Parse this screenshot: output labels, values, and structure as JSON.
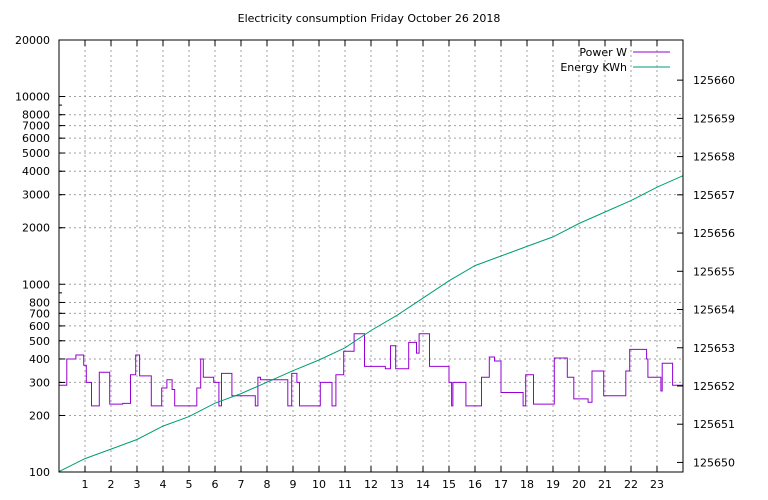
{
  "chart_data": {
    "type": "line",
    "title": "Electricity consumption Friday October 26 2018",
    "xlabel": "",
    "ylabel": "",
    "y2label": "",
    "x_range": [
      0,
      24
    ],
    "x_ticks": [
      1,
      2,
      3,
      4,
      5,
      6,
      7,
      8,
      9,
      10,
      11,
      12,
      13,
      14,
      15,
      16,
      17,
      18,
      19,
      20,
      21,
      22,
      23
    ],
    "y_scale": "log",
    "y_range": [
      100,
      20000
    ],
    "y_ticks": [
      100,
      200,
      300,
      400,
      500,
      600,
      700,
      800,
      1000,
      2000,
      3000,
      4000,
      5000,
      6000,
      7000,
      8000,
      10000,
      20000
    ],
    "y2_range": [
      125649.75,
      125661.05
    ],
    "y2_ticks": [
      125650,
      125651,
      125652,
      125653,
      125654,
      125655,
      125656,
      125657,
      125658,
      125659,
      125660
    ],
    "grid": true,
    "legend_position": "top-right",
    "series": [
      {
        "name": "Power W",
        "axis": "y",
        "color": "#9400d3",
        "step": true,
        "points": [
          [
            0.0,
            290
          ],
          [
            0.3,
            400
          ],
          [
            0.65,
            420
          ],
          [
            0.95,
            370
          ],
          [
            1.05,
            300
          ],
          [
            1.25,
            225
          ],
          [
            1.55,
            340
          ],
          [
            1.95,
            230
          ],
          [
            2.45,
            232
          ],
          [
            2.75,
            330
          ],
          [
            2.95,
            420
          ],
          [
            3.1,
            325
          ],
          [
            3.55,
            225
          ],
          [
            3.95,
            280
          ],
          [
            4.15,
            310
          ],
          [
            4.35,
            275
          ],
          [
            4.45,
            225
          ],
          [
            5.3,
            280
          ],
          [
            5.45,
            400
          ],
          [
            5.55,
            320
          ],
          [
            5.95,
            300
          ],
          [
            6.15,
            225
          ],
          [
            6.25,
            335
          ],
          [
            6.65,
            255
          ],
          [
            7.55,
            225
          ],
          [
            7.65,
            320
          ],
          [
            7.75,
            310
          ],
          [
            8.8,
            225
          ],
          [
            8.95,
            335
          ],
          [
            9.15,
            300
          ],
          [
            9.25,
            225
          ],
          [
            10.05,
            300
          ],
          [
            10.5,
            225
          ],
          [
            10.65,
            330
          ],
          [
            10.95,
            440
          ],
          [
            11.35,
            545
          ],
          [
            11.75,
            365
          ],
          [
            12.55,
            355
          ],
          [
            12.75,
            470
          ],
          [
            12.95,
            355
          ],
          [
            13.45,
            490
          ],
          [
            13.75,
            430
          ],
          [
            13.85,
            545
          ],
          [
            14.25,
            365
          ],
          [
            15.0,
            300
          ],
          [
            15.1,
            225
          ],
          [
            15.15,
            300
          ],
          [
            15.65,
            225
          ],
          [
            16.25,
            320
          ],
          [
            16.55,
            410
          ],
          [
            16.75,
            390
          ],
          [
            17.0,
            265
          ],
          [
            17.85,
            225
          ],
          [
            17.95,
            330
          ],
          [
            18.25,
            230
          ],
          [
            19.05,
            405
          ],
          [
            19.55,
            320
          ],
          [
            19.8,
            245
          ],
          [
            20.35,
            235
          ],
          [
            20.5,
            345
          ],
          [
            20.95,
            255
          ],
          [
            21.8,
            345
          ],
          [
            21.95,
            450
          ],
          [
            22.6,
            400
          ],
          [
            22.65,
            320
          ],
          [
            23.15,
            270
          ],
          [
            23.2,
            380
          ],
          [
            23.6,
            290
          ],
          [
            24.0,
            290
          ]
        ]
      },
      {
        "name": "Energy KWh",
        "axis": "y2",
        "color": "#009e73",
        "step": false,
        "points": [
          [
            0.0,
            125649.76
          ],
          [
            1.0,
            125650.1
          ],
          [
            2.0,
            125650.35
          ],
          [
            3.0,
            125650.6
          ],
          [
            4.0,
            125650.95
          ],
          [
            5.0,
            125651.2
          ],
          [
            6.0,
            125651.55
          ],
          [
            7.0,
            125651.8
          ],
          [
            8.0,
            125652.1
          ],
          [
            9.0,
            125652.4
          ],
          [
            10.0,
            125652.68
          ],
          [
            11.0,
            125653.0
          ],
          [
            12.0,
            125653.45
          ],
          [
            13.0,
            125653.85
          ],
          [
            14.0,
            125654.3
          ],
          [
            15.0,
            125654.75
          ],
          [
            16.0,
            125655.15
          ],
          [
            17.0,
            125655.4
          ],
          [
            18.0,
            125655.65
          ],
          [
            19.0,
            125655.9
          ],
          [
            20.0,
            125656.25
          ],
          [
            21.0,
            125656.55
          ],
          [
            22.0,
            125656.85
          ],
          [
            23.0,
            125657.2
          ],
          [
            24.0,
            125657.5
          ]
        ]
      }
    ]
  }
}
